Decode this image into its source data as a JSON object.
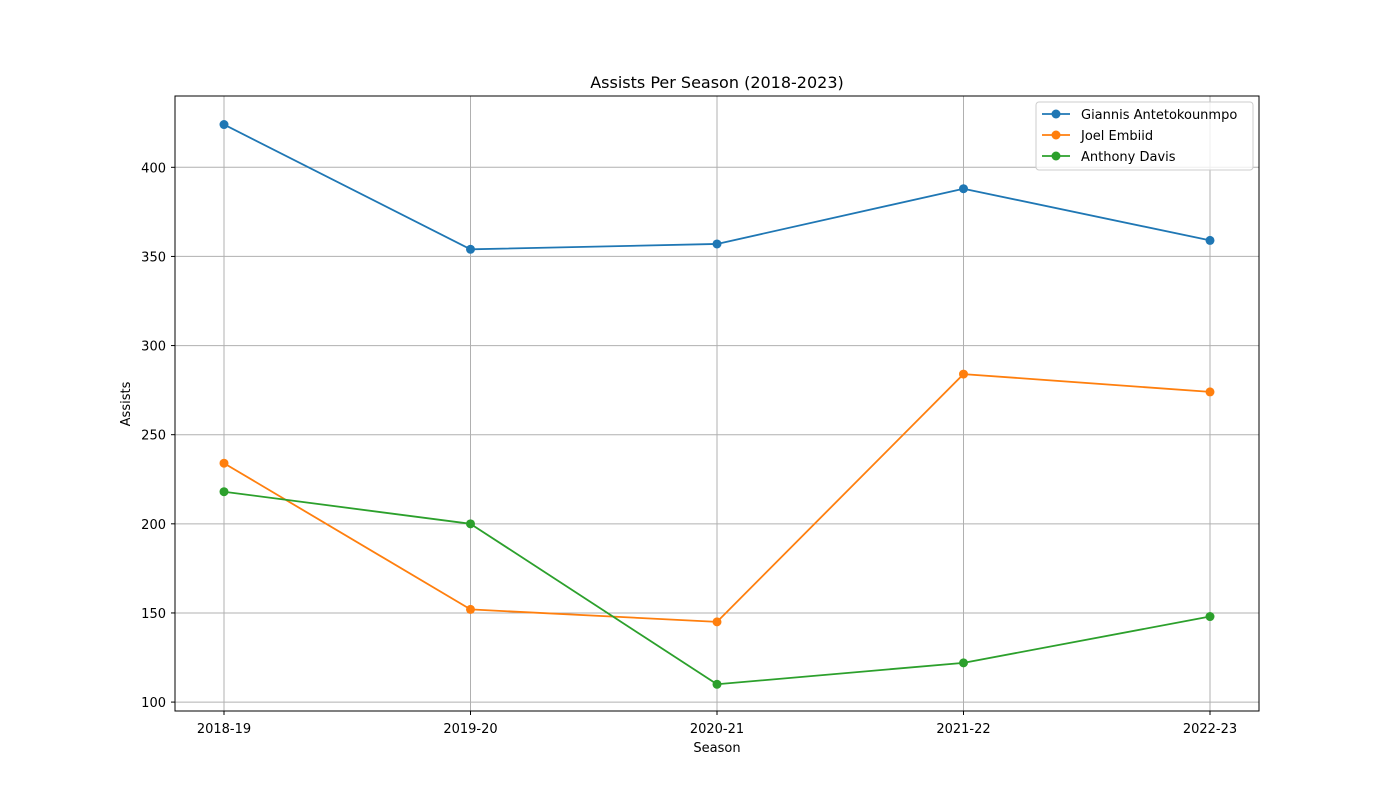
{
  "chart_data": {
    "type": "line",
    "title": "Assists Per Season (2018-2023)",
    "xlabel": "Season",
    "ylabel": "Assists",
    "categories": [
      "2018-19",
      "2019-20",
      "2020-21",
      "2021-22",
      "2022-23"
    ],
    "ylim": [
      95,
      440
    ],
    "yticks": [
      100,
      150,
      200,
      250,
      300,
      350,
      400
    ],
    "grid": true,
    "legend_position": "top-right",
    "series": [
      {
        "name": "Giannis Antetokounmpo",
        "color": "#1f77b4",
        "values": [
          424,
          354,
          357,
          388,
          359
        ]
      },
      {
        "name": "Joel Embiid",
        "color": "#ff7f0e",
        "values": [
          234,
          152,
          145,
          284,
          274
        ]
      },
      {
        "name": "Anthony Davis",
        "color": "#2ca02c",
        "values": [
          218,
          200,
          110,
          122,
          148
        ]
      }
    ]
  }
}
